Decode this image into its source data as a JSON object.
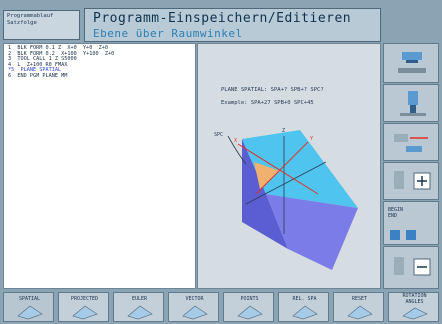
{
  "header": {
    "mode_lines": [
      "Programmablauf",
      "Satzfolge"
    ],
    "title": "Programm-Einspeichern/Editieren",
    "subtitle": "Ebene über Raumwinkel"
  },
  "program": {
    "lines": [
      {
        "text": "1  BLK FORM 0.1 Z  X+0  Y+0  Z+0",
        "active": false
      },
      {
        "text": "2  BLK FORM 0.2  X+100  Y+100  Z+0",
        "active": false
      },
      {
        "text": "3  TOOL CALL 1 Z S5000",
        "active": false
      },
      {
        "text": "4  L  Z+100 R0 FMAX",
        "active": false
      },
      {
        "text": "*5  PLANE SPATIAL",
        "active": true
      },
      {
        "text": "6  END PGM PLANE MM",
        "active": false
      }
    ]
  },
  "help": {
    "syntax": "PLANE SPATIAL: SPA+? SPB+? SPC?",
    "example": "Example: SPA+27 SPB+0 SPC+45",
    "axis_labels": [
      "SPC",
      "X",
      "Y",
      "Z"
    ],
    "colors": {
      "top_face": "#4ec4ef",
      "front_face": "#7b7ce8",
      "side_face": "#5a5ed0",
      "triangle": "#f0b070",
      "axis_red": "#e0302a"
    }
  },
  "right_softkeys": [
    {
      "label": ""
    },
    {
      "label": ""
    },
    {
      "label": ""
    },
    {
      "label": ""
    },
    {
      "label": "BEGIN\nEND"
    },
    {
      "label": ""
    }
  ],
  "bottom_softkeys": [
    {
      "label": "SPATIAL"
    },
    {
      "label": "PROJECTED"
    },
    {
      "label": "EULER"
    },
    {
      "label": "VECTOR"
    },
    {
      "label": "POINTS"
    },
    {
      "label": "REL. SPA"
    },
    {
      "label": "RESET"
    },
    {
      "label": "ROTATION\nANGLES"
    }
  ]
}
